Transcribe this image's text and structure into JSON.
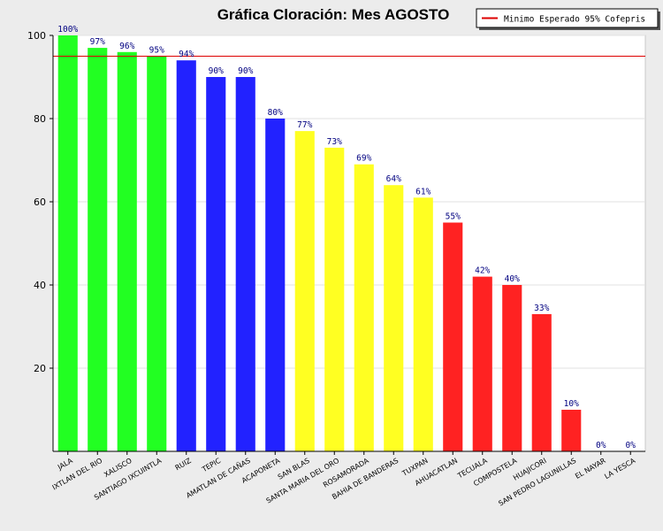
{
  "chart_data": {
    "type": "bar",
    "title": "Gráfica Cloración: Mes AGOSTO",
    "xlabel": "",
    "ylabel": "",
    "ylim": [
      0,
      100
    ],
    "yticks": [
      20,
      40,
      60,
      80,
      100
    ],
    "grid": true,
    "legend": {
      "position": "top-right",
      "entries": [
        {
          "label": "Minimo Esperado 95% Cofepris",
          "color": "#dd0000"
        }
      ]
    },
    "reference_line": {
      "value": 95,
      "color": "#dd0000",
      "label": "Minimo Esperado 95% Cofepris"
    },
    "categories": [
      "JALA",
      "IXTLAN DEL RIO",
      "XALISCO",
      "SANTIAGO IXCUINTLA",
      "RUIZ",
      "TEPIC",
      "AMATLAN DE CAÑAS",
      "ACAPONETA",
      "SAN BLAS",
      "SANTA MARIA DEL ORO",
      "ROSAMORADA",
      "BAHIA DE BANDERAS",
      "TUXPAN",
      "AHUACATLAN",
      "TECUALA",
      "COMPOSTELA",
      "HUAJICORI",
      "SAN PEDRO LAGUNILLAS",
      "EL NAYAR",
      "LA YESCA"
    ],
    "values": [
      100,
      97,
      96,
      95,
      94,
      90,
      90,
      80,
      77,
      73,
      69,
      64,
      61,
      55,
      42,
      40,
      33,
      10,
      0,
      0
    ],
    "value_labels": [
      "100%",
      "97%",
      "96%",
      "95%",
      "94%",
      "90%",
      "90%",
      "80%",
      "77%",
      "73%",
      "69%",
      "64%",
      "61%",
      "55%",
      "42%",
      "40%",
      "33%",
      "10%",
      "0%",
      "0%"
    ],
    "bar_colors": [
      "#22ff22",
      "#22ff22",
      "#22ff22",
      "#22ff22",
      "#2222ff",
      "#2222ff",
      "#2222ff",
      "#2222ff",
      "#ffff22",
      "#ffff22",
      "#ffff22",
      "#ffff22",
      "#ffff22",
      "#ff2222",
      "#ff2222",
      "#ff2222",
      "#ff2222",
      "#ff2222",
      "#ff2222",
      "#ff2222"
    ]
  }
}
